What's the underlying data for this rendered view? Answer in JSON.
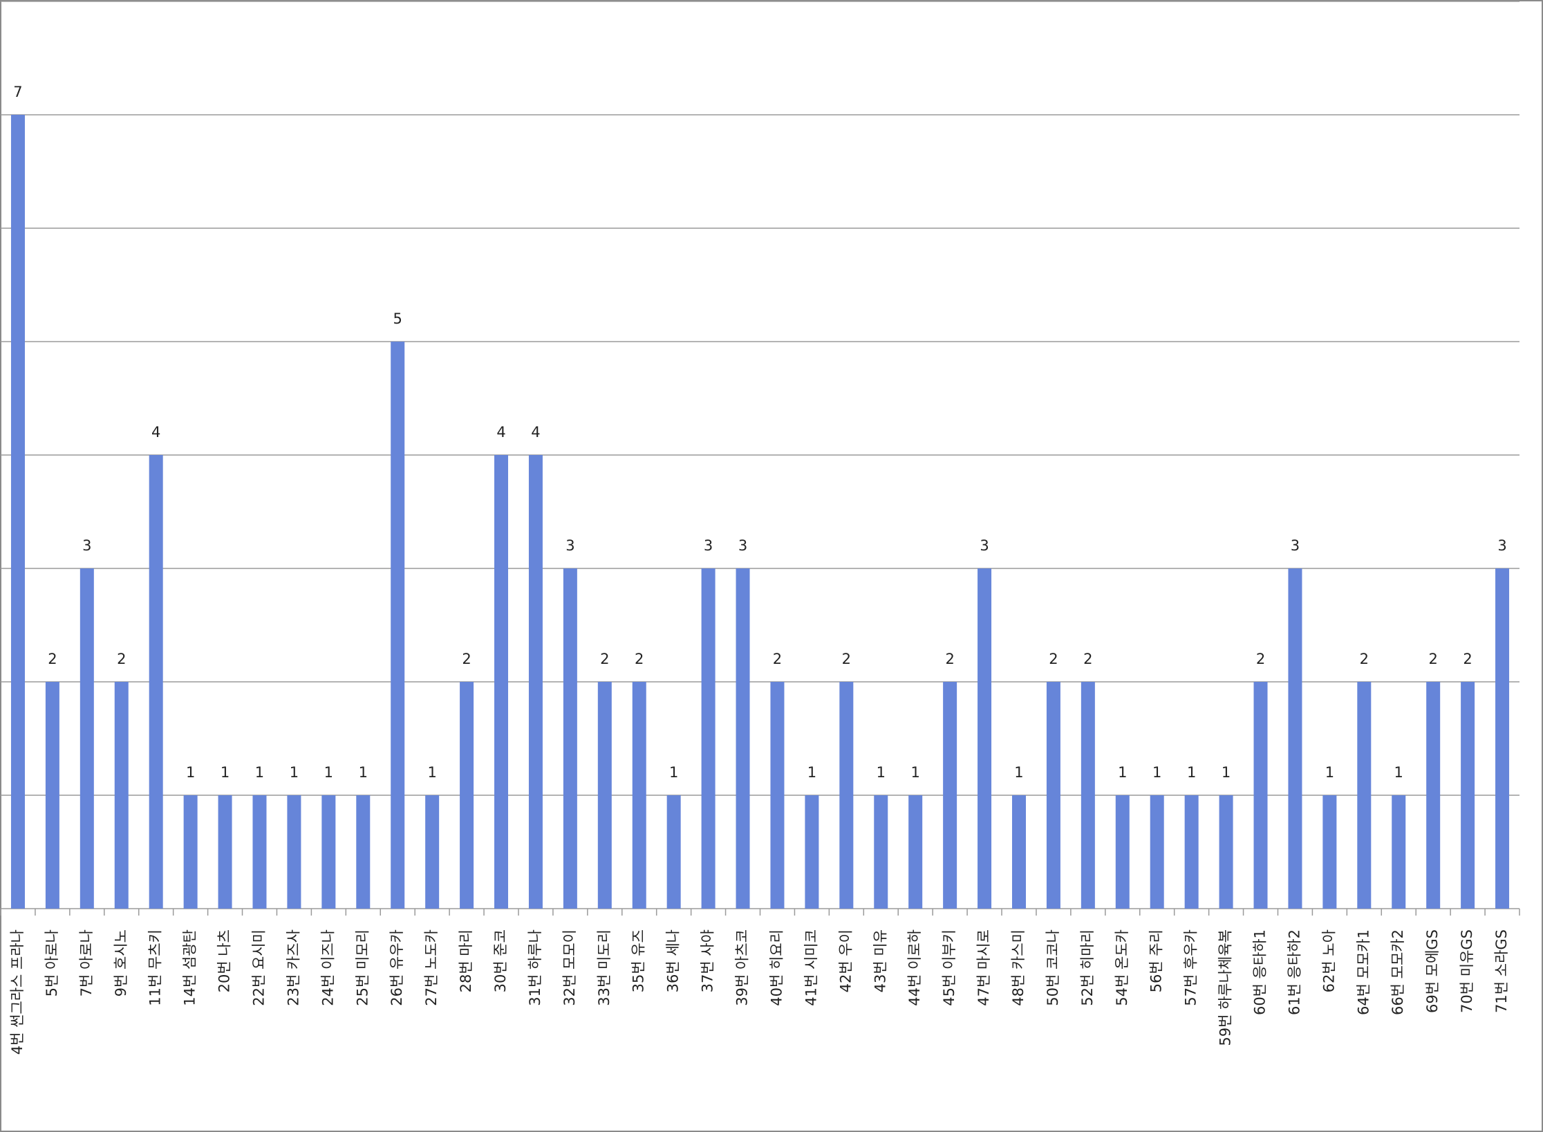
{
  "chart_data": {
    "type": "bar",
    "categories": [
      "4번 썬그라스 프라나",
      "5번 아로나",
      "7번 아로나",
      "9번 호시노",
      "11번 무츠키",
      "14번 섬광탄",
      "20번 나츠",
      "22번 요시미",
      "23번 카즈사",
      "24번 이즈나",
      "25번 미모리",
      "26번 유우카",
      "27번 노도카",
      "28번 마리",
      "30번 준코",
      "31번 하루나",
      "32번 모모이",
      "33번 미도리",
      "35번 유즈",
      "36번 세나",
      "37번 사야",
      "39번 아츠코",
      "40번 히요리",
      "41번 시미코",
      "42번 우이",
      "43번 미유",
      "44번 이로하",
      "45번 이부키",
      "47번 마시로",
      "48번 카스미",
      "50번 코코나",
      "52번 히마리",
      "54번 온도카",
      "56번 주리",
      "57번 후우카",
      "59번 하루나체육복",
      "60번 응타하1",
      "61번 응타하2",
      "62번 노아",
      "64번 모모카1",
      "66번 모모카2",
      "69번 모에GS",
      "70번 미유GS",
      "71번 소라GS"
    ],
    "values": [
      7,
      2,
      3,
      2,
      4,
      1,
      1,
      1,
      1,
      1,
      1,
      5,
      1,
      2,
      4,
      4,
      3,
      2,
      2,
      1,
      3,
      3,
      2,
      1,
      2,
      1,
      1,
      2,
      3,
      1,
      2,
      2,
      1,
      1,
      1,
      1,
      2,
      3,
      1,
      2,
      1,
      2,
      2,
      3
    ],
    "color": "#6685d9",
    "ylim": [
      0,
      8
    ],
    "yticks": [
      0,
      1,
      2,
      3,
      4,
      5,
      6,
      7,
      8
    ],
    "grid": true
  }
}
